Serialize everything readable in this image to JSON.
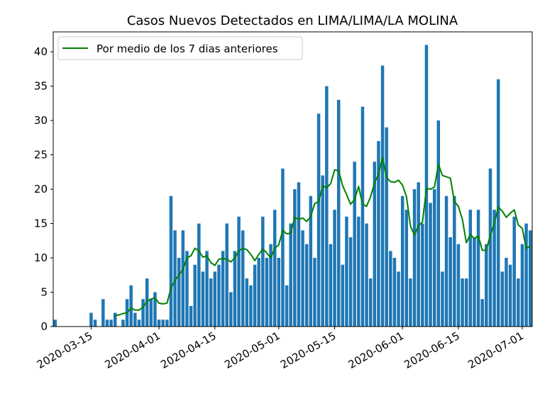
{
  "chart_data": {
    "type": "bar",
    "title": "Casos Nuevos Detectados en LIMA/LIMA/LA MOLINA",
    "xlabel": "",
    "ylabel": "",
    "x_start": "2020-03-06",
    "y_ticks": [
      "0",
      "5",
      "10",
      "15",
      "20",
      "25",
      "30",
      "35",
      "40"
    ],
    "ylim": [
      0,
      42.9
    ],
    "x_ticks": [
      "2020-03-15",
      "2020-04-01",
      "2020-04-15",
      "2020-05-01",
      "2020-05-15",
      "2020-06-01",
      "2020-06-15",
      "2020-07-01"
    ],
    "legend_position": "upper-left",
    "bar_color": "#1f77b4",
    "line_color": "#008000",
    "series": [
      {
        "type": "bar",
        "values": [
          1,
          0,
          0,
          0,
          0,
          0,
          0,
          0,
          0,
          2,
          1,
          0,
          4,
          1,
          1,
          2,
          0,
          1,
          4,
          6,
          2,
          1,
          4,
          7,
          4,
          5,
          1,
          1,
          1,
          19,
          14,
          10,
          14,
          11,
          3,
          9,
          15,
          8,
          11,
          7,
          8,
          9,
          11,
          15,
          5,
          11,
          16,
          14,
          7,
          6,
          9,
          10,
          16,
          10,
          12,
          17,
          10,
          23,
          6,
          15,
          20,
          21,
          14,
          12,
          19,
          10,
          31,
          22,
          35,
          12,
          17,
          33,
          9,
          16,
          13,
          24,
          16,
          32,
          15,
          7,
          24,
          27,
          38,
          29,
          11,
          10,
          8,
          19,
          17,
          7,
          20,
          21,
          15,
          41,
          18,
          20,
          30,
          8,
          19,
          13,
          19,
          12,
          7,
          7,
          17,
          13,
          17,
          4,
          12,
          23,
          17,
          36,
          8,
          10,
          9,
          16,
          7,
          12,
          15,
          14
        ]
      },
      {
        "name": "Por medio de los 7 dias anteriores",
        "type": "line",
        "values": [
          null,
          null,
          null,
          null,
          null,
          null,
          null,
          null,
          null,
          null,
          null,
          null,
          null,
          null,
          null,
          1.6,
          1.7,
          1.9,
          2,
          2.7,
          2.4,
          2.4,
          2.8,
          3.7,
          4,
          4.2,
          3.4,
          3.3,
          3.4,
          5.6,
          6.7,
          7.5,
          8.3,
          10,
          10.3,
          11.4,
          11,
          10.1,
          10.3,
          9.3,
          8.9,
          9.8,
          9.9,
          9.8,
          9.4,
          10,
          11,
          11.4,
          11.2,
          10.5,
          9.6,
          10.5,
          11.3,
          10.7,
          10,
          11.4,
          11.9,
          14,
          13.5,
          13.6,
          15.9,
          15.6,
          15.8,
          15.3,
          16,
          17.9,
          18.2,
          20.5,
          20.2,
          20.8,
          22.8,
          22.7,
          20.5,
          19.2,
          17.8,
          18.5,
          20.4,
          17.8,
          17.5,
          18.9,
          20.9,
          22.2,
          24.6,
          21.7,
          21.1,
          21,
          21.3,
          20.6,
          18.9,
          14.6,
          13.3,
          14.7,
          15.2,
          20.1,
          20,
          20.3,
          23.6,
          22,
          21.8,
          21.6,
          18.2,
          17.5,
          15.6,
          12.2,
          13.4,
          12.8,
          13.2,
          11.1,
          11.1,
          13.3,
          15,
          17.4,
          16.8,
          15.9,
          16.5,
          17,
          14.8,
          14.3,
          11.4,
          11.7
        ]
      }
    ]
  }
}
